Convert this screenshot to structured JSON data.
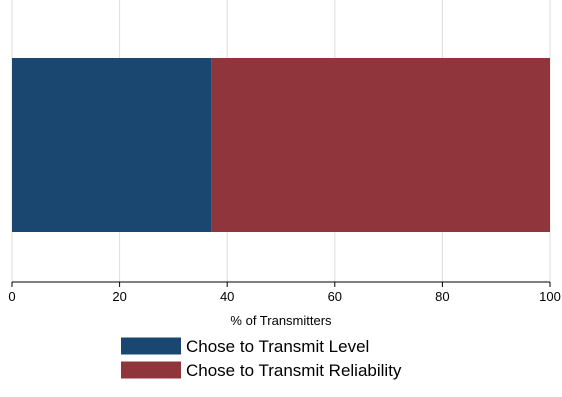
{
  "chart_data": {
    "type": "bar",
    "orientation": "horizontal",
    "stacked": true,
    "categories": [
      ""
    ],
    "series": [
      {
        "name": "Chose to Transmit Level",
        "values": [
          37
        ],
        "color": "#1a476f"
      },
      {
        "name": "Chose to Transmit Reliability",
        "values": [
          63
        ],
        "color": "#90353b"
      }
    ],
    "xlabel": "% of Transmitters",
    "ylabel": "",
    "xlim": [
      0,
      100
    ],
    "xticks": [
      0,
      20,
      40,
      60,
      80,
      100
    ],
    "xtick_labels": [
      "0",
      "20",
      "40",
      "60",
      "80",
      "100"
    ],
    "grid": true,
    "legend_position": "bottom"
  }
}
